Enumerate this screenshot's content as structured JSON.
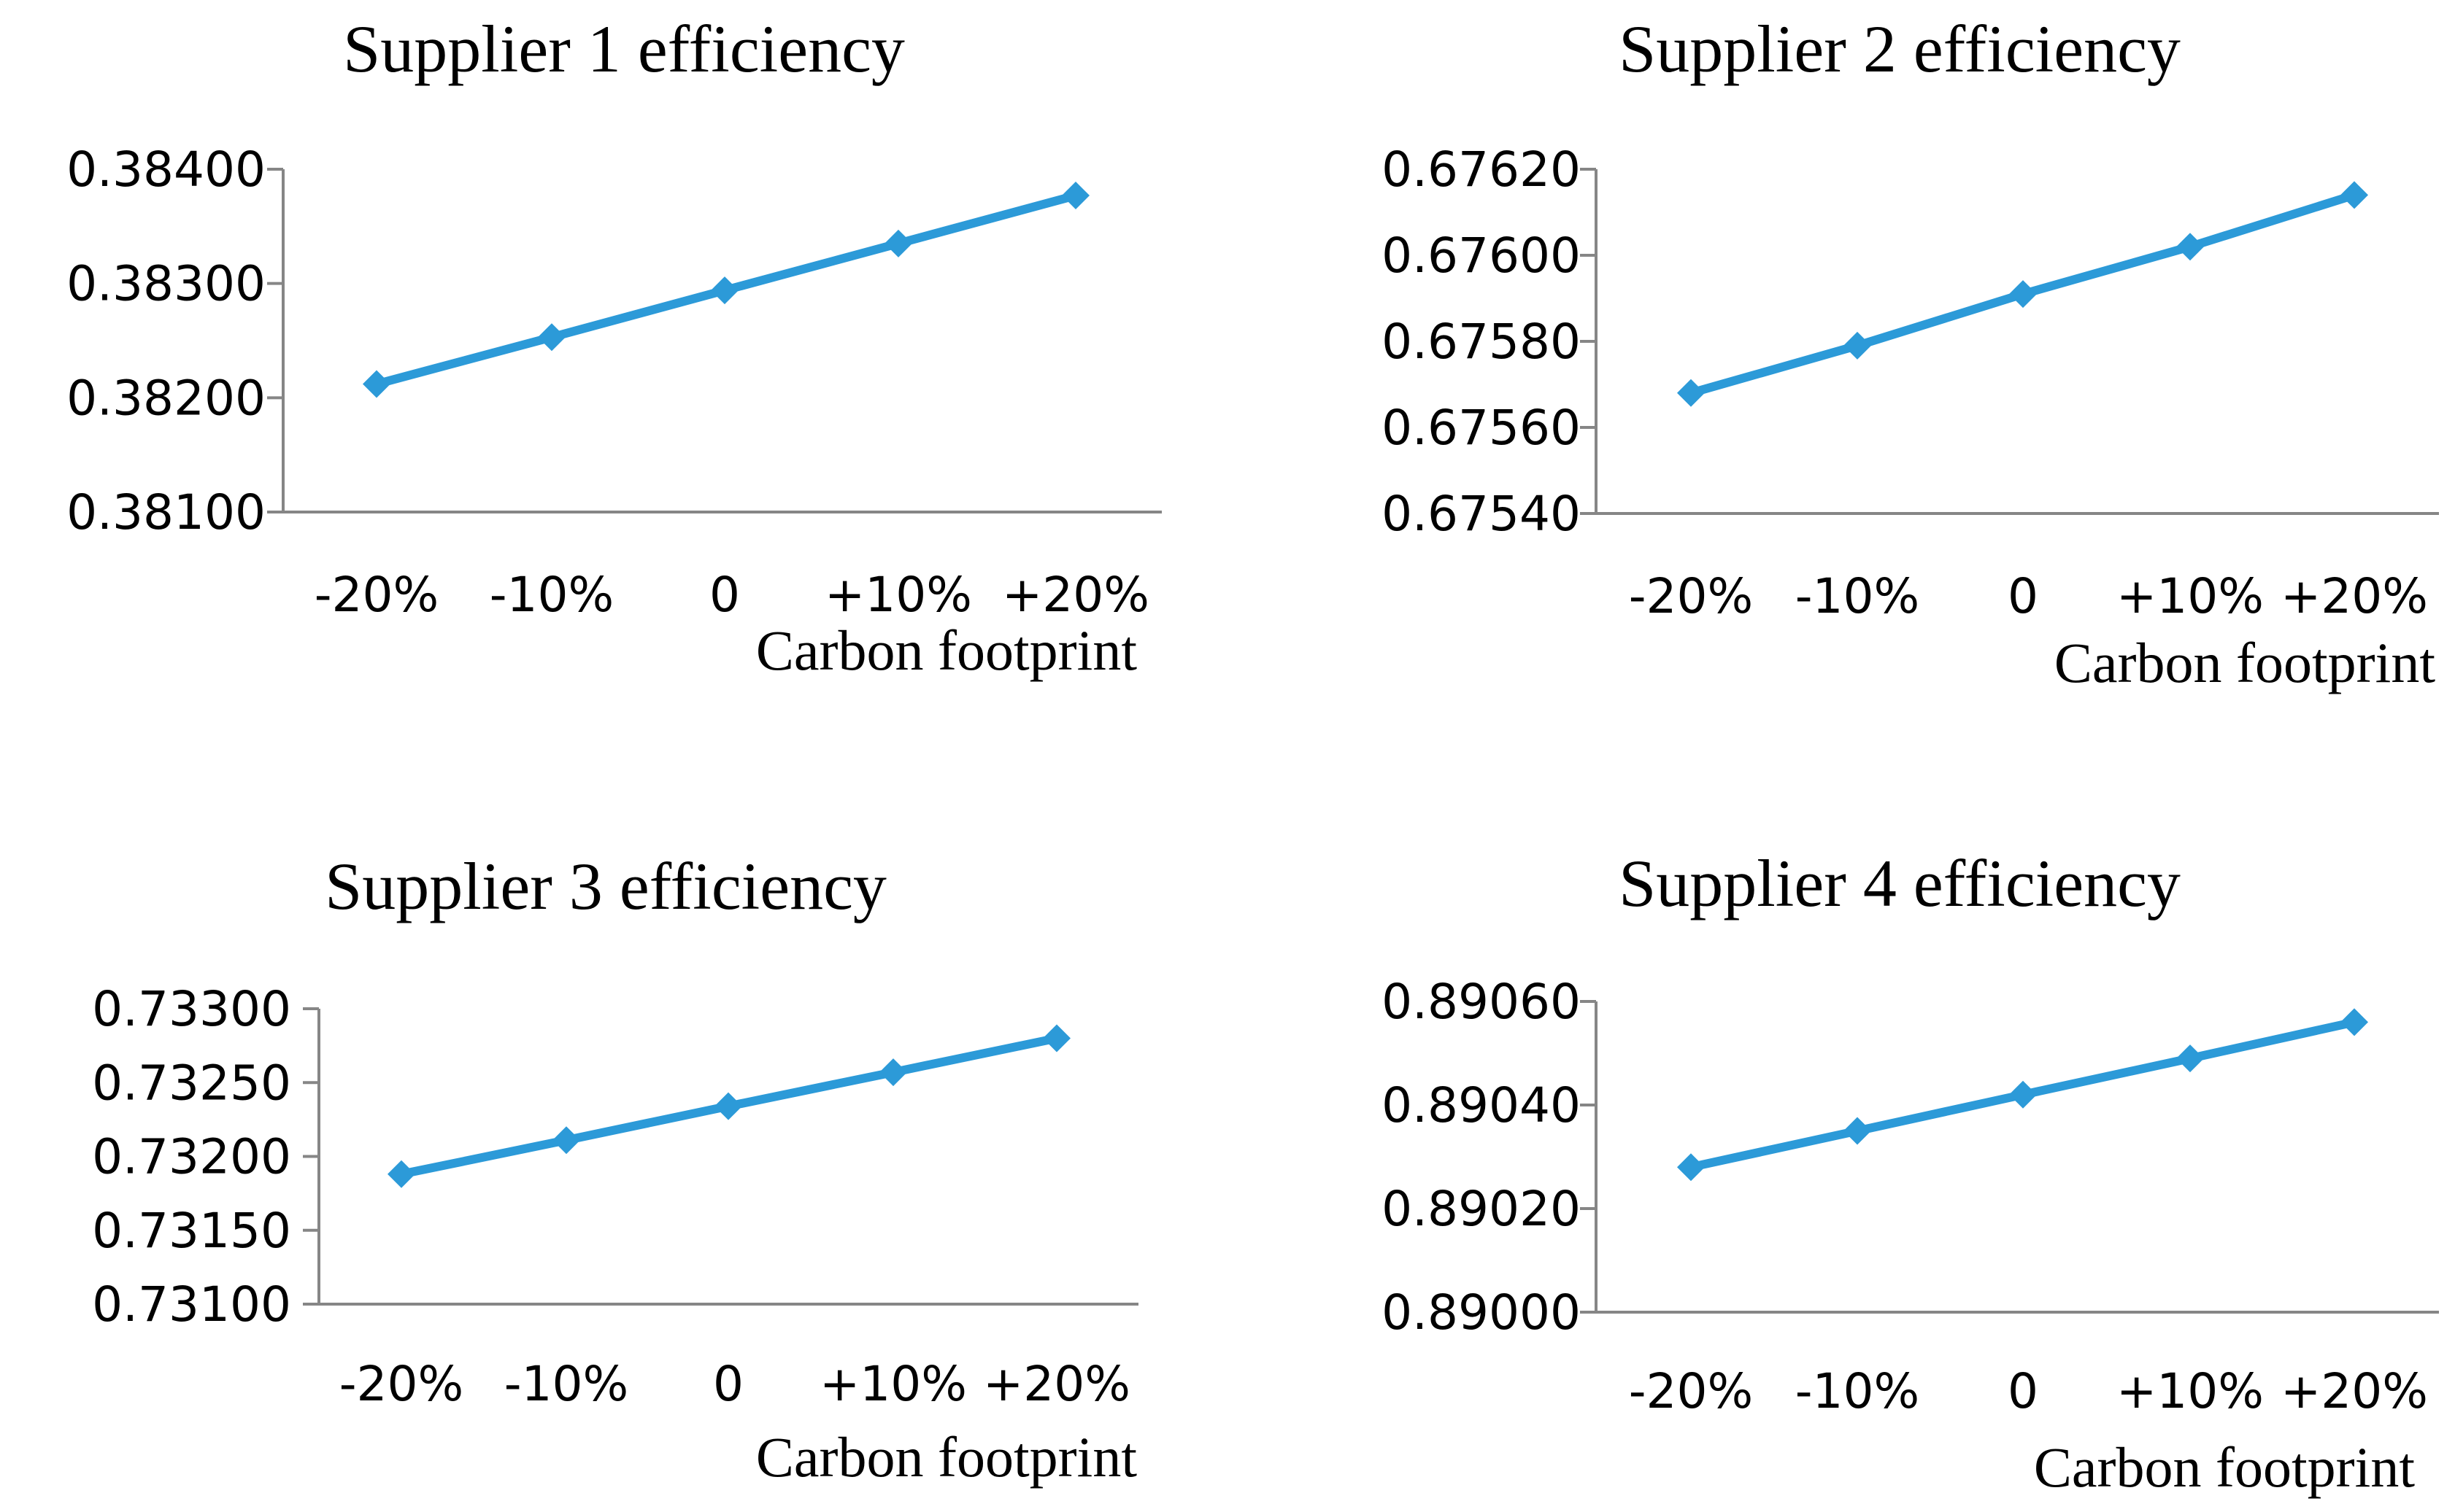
{
  "figure_colors": {
    "series": "#2C9AD8",
    "axis": "#868686",
    "text": "#000000"
  },
  "chart_data": [
    {
      "type": "line",
      "title": "Supplier 1 efficiency",
      "xlabel": "Carbon footprint",
      "ylabel": "",
      "categories": [
        "-20%",
        "-10%",
        "0",
        "+10%",
        "+20%"
      ],
      "series": [
        {
          "name": "Supplier 1 efficiency",
          "values": [
            0.38212,
            0.38253,
            0.38294,
            0.38335,
            0.38377
          ]
        }
      ],
      "ylim": [
        0.381,
        0.384
      ],
      "yticks": [
        0.381,
        0.382,
        0.383,
        0.384
      ],
      "ytick_labels": [
        "0.38100",
        "0.38200",
        "0.38300",
        "0.38400"
      ],
      "grid": false,
      "legend": "none"
    },
    {
      "type": "line",
      "title": "Supplier 2 efficiency",
      "xlabel": "Carbon footprint",
      "ylabel": "",
      "categories": [
        "-20%",
        "-10%",
        "0",
        "+10%",
        "+20%"
      ],
      "series": [
        {
          "name": "Supplier 2 efficiency",
          "values": [
            0.67568,
            0.67579,
            0.67591,
            0.67602,
            0.67614
          ]
        }
      ],
      "ylim": [
        0.6754,
        0.6762
      ],
      "yticks": [
        0.6754,
        0.6756,
        0.6758,
        0.676,
        0.6762
      ],
      "ytick_labels": [
        "0.67540",
        "0.67560",
        "0.67580",
        "0.67600",
        "0.67620"
      ],
      "grid": false,
      "legend": "none"
    },
    {
      "type": "line",
      "title": "Supplier 3 efficiency",
      "xlabel": "Carbon footprint",
      "ylabel": "",
      "categories": [
        "-20%",
        "-10%",
        "0",
        "+10%",
        "+20%"
      ],
      "series": [
        {
          "name": "Supplier 3 efficiency",
          "values": [
            0.73188,
            0.73211,
            0.73234,
            0.73257,
            0.7328
          ]
        }
      ],
      "ylim": [
        0.731,
        0.733
      ],
      "yticks": [
        0.731,
        0.7315,
        0.732,
        0.7325,
        0.733
      ],
      "ytick_labels": [
        "0.73100",
        "0.73150",
        "0.73200",
        "0.73250",
        "0.73300"
      ],
      "grid": false,
      "legend": "none"
    },
    {
      "type": "line",
      "title": "Supplier 4 efficiency",
      "xlabel": "Carbon footprint",
      "ylabel": "",
      "categories": [
        "-20%",
        "-10%",
        "0",
        "+10%",
        "+20%"
      ],
      "series": [
        {
          "name": "Supplier 4 efficiency",
          "values": [
            0.89028,
            0.89035,
            0.89042,
            0.89049,
            0.89056
          ]
        }
      ],
      "ylim": [
        0.89,
        0.8906
      ],
      "yticks": [
        0.89,
        0.8902,
        0.8904,
        0.8906
      ],
      "ytick_labels": [
        "0.89000",
        "0.89020",
        "0.89040",
        "0.89060"
      ],
      "grid": false,
      "legend": "none"
    }
  ]
}
